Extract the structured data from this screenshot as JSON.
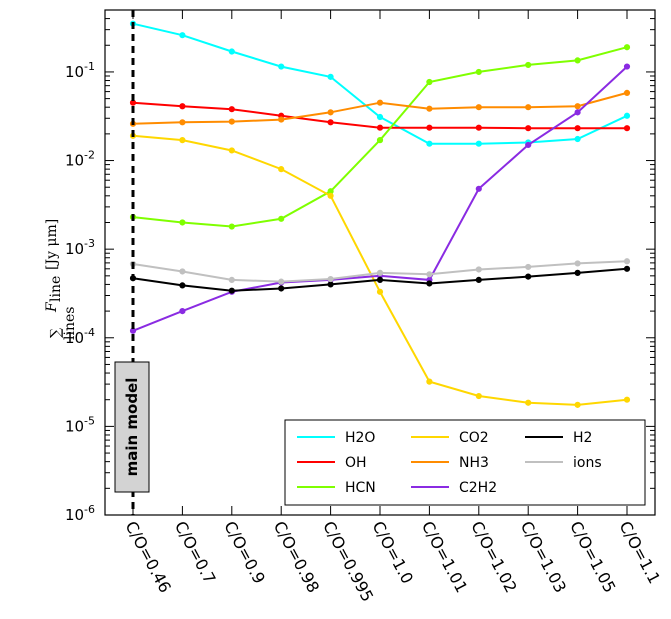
{
  "chart_data": {
    "type": "line",
    "title": "",
    "xlabel": "",
    "ylabel": "Σ_lines F_line [Jy μm]",
    "ylabel_parts": {
      "sum": "∑",
      "sum_sub": "lines",
      "f": "F",
      "f_sub": "line",
      "units": "[Jy μm]"
    },
    "yscale": "log",
    "ylim": [
      1e-06,
      0.5
    ],
    "y_ticks": [
      {
        "value": 1e-06,
        "base": "10",
        "exp": "-6"
      },
      {
        "value": 1e-05,
        "base": "10",
        "exp": "-5"
      },
      {
        "value": 0.0001,
        "base": "10",
        "exp": "-4"
      },
      {
        "value": 0.001,
        "base": "10",
        "exp": "-3"
      },
      {
        "value": 0.01,
        "base": "10",
        "exp": "-2"
      },
      {
        "value": 0.1,
        "base": "10",
        "exp": "-1"
      }
    ],
    "categories": [
      "C/O=0.46",
      "C/O=0.7",
      "C/O=0.9",
      "C/O=0.98",
      "C/O=0.995",
      "C/O=1.0",
      "C/O=1.01",
      "C/O=1.02",
      "C/O=1.03",
      "C/O=1.05",
      "C/O=1.1"
    ],
    "grid": false,
    "legend_position": "lower-right",
    "legend_columns": 3,
    "annotation": {
      "text": "main model",
      "category_index": 0
    },
    "series": [
      {
        "name": "H2O",
        "color": "#00ffff",
        "values": [
          0.35,
          0.26,
          0.17,
          0.115,
          0.088,
          0.031,
          0.0155,
          0.0155,
          0.016,
          0.0175,
          0.032
        ]
      },
      {
        "name": "OH",
        "color": "#ff0000",
        "values": [
          0.045,
          0.041,
          0.038,
          0.032,
          0.027,
          0.0235,
          0.0235,
          0.0235,
          0.0232,
          0.0232,
          0.0232
        ]
      },
      {
        "name": "HCN",
        "color": "#7fff00",
        "values": [
          0.0023,
          0.002,
          0.0018,
          0.0022,
          0.0045,
          0.017,
          0.077,
          0.1,
          0.12,
          0.135,
          0.19
        ]
      },
      {
        "name": "CO2",
        "color": "#ffd700",
        "values": [
          0.019,
          0.017,
          0.013,
          0.008,
          0.004,
          0.00033,
          3.2e-05,
          2.2e-05,
          1.85e-05,
          1.75e-05,
          2e-05
        ]
      },
      {
        "name": "NH3",
        "color": "#ff8c00",
        "values": [
          0.026,
          0.027,
          0.0275,
          0.029,
          0.035,
          0.045,
          0.0385,
          0.04,
          0.04,
          0.041,
          0.058
        ]
      },
      {
        "name": "C2H2",
        "color": "#8a2be2",
        "values": [
          0.00012,
          0.0002,
          0.00033,
          0.00042,
          0.00045,
          0.0005,
          0.00045,
          0.0048,
          0.015,
          0.035,
          0.115
        ]
      },
      {
        "name": "H2",
        "color": "#000000",
        "values": [
          0.00047,
          0.00039,
          0.00034,
          0.00036,
          0.0004,
          0.00045,
          0.00041,
          0.00045,
          0.00049,
          0.00054,
          0.0006
        ]
      },
      {
        "name": "ions",
        "color": "#c0c0c0",
        "values": [
          0.00068,
          0.00056,
          0.00045,
          0.00043,
          0.00046,
          0.00054,
          0.00052,
          0.00059,
          0.00063,
          0.00069,
          0.00073
        ]
      }
    ]
  }
}
